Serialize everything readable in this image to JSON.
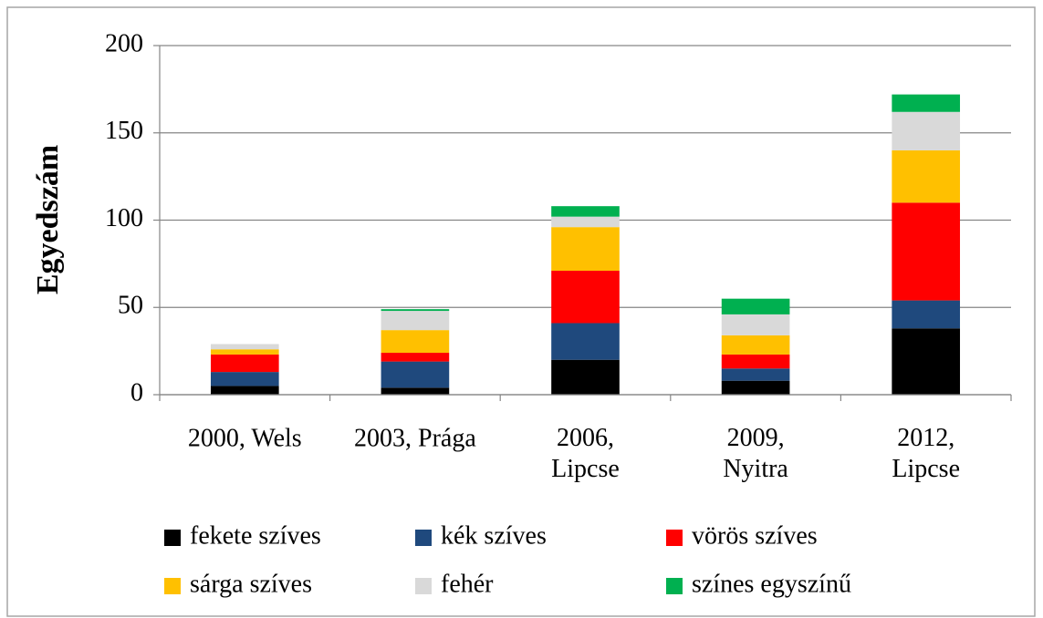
{
  "chart_data": {
    "type": "stacked_bar",
    "y_label": "Egyedszám",
    "categories": [
      "2000, Wels",
      "2003, Prága",
      "2006,\nLipcse",
      "2009,\nNyitra",
      "2012,\nLipcse"
    ],
    "series": [
      {
        "name": "fekete szíves",
        "color": "#000000",
        "values": [
          5,
          4,
          20,
          8,
          38
        ]
      },
      {
        "name": "kék szíves",
        "color": "#1f497d",
        "values": [
          8,
          15,
          21,
          7,
          16
        ]
      },
      {
        "name": "vörös szíves",
        "color": "#ff0000",
        "values": [
          10,
          5,
          30,
          8,
          56
        ]
      },
      {
        "name": "sárga szíves",
        "color": "#ffc000",
        "values": [
          3,
          13,
          25,
          11,
          30
        ]
      },
      {
        "name": "fehér",
        "color": "#d9d9d9",
        "values": [
          3,
          11,
          6,
          12,
          22
        ]
      },
      {
        "name": "színes egyszínű",
        "color": "#00b050",
        "values": [
          0,
          1,
          6,
          9,
          10
        ]
      }
    ],
    "ylim": [
      0,
      200
    ],
    "yticks": [
      0,
      50,
      100,
      150,
      200
    ],
    "grid": true
  }
}
